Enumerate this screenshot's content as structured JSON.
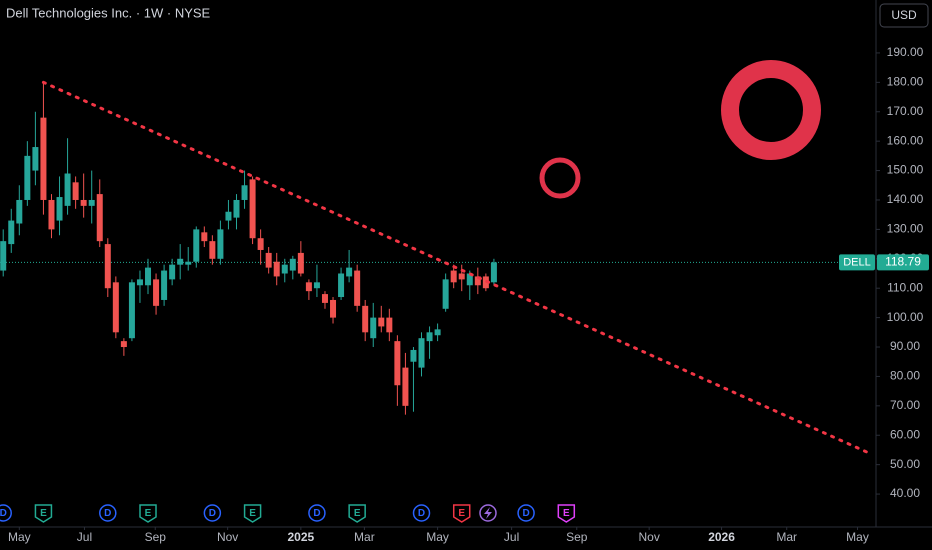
{
  "chart_data": {
    "type": "candlestick",
    "title": "Dell Technologies Inc. · 1W · NYSE",
    "currency": "USD",
    "up_color": "#26a69a",
    "down_color": "#f05350",
    "x": [
      -2,
      -1,
      0,
      1,
      2,
      3,
      4,
      5,
      6,
      7,
      8,
      9,
      10,
      11,
      12,
      13,
      14,
      15,
      16,
      17,
      18,
      19,
      20,
      21,
      22,
      23,
      24,
      25,
      26,
      27,
      28,
      29,
      30,
      31,
      32,
      33,
      34,
      35,
      36,
      37,
      38,
      39,
      40,
      41,
      42,
      43,
      44,
      45,
      46,
      47,
      48,
      49,
      50,
      51,
      52,
      53,
      54,
      55,
      56,
      57,
      58,
      59
    ],
    "open": [
      116,
      125,
      132,
      140,
      150,
      168,
      140,
      133,
      138,
      146,
      140,
      138,
      142,
      125,
      112,
      92,
      93,
      111,
      111,
      113,
      106,
      113,
      118,
      118,
      119,
      129,
      126,
      120,
      133,
      134,
      140,
      147,
      127,
      122,
      119,
      115,
      116,
      122,
      112,
      110,
      108,
      106,
      107,
      114,
      116,
      104,
      93,
      100,
      100,
      92,
      83,
      85,
      83,
      92,
      94,
      103,
      116,
      115,
      111,
      114,
      114,
      112
    ],
    "high": [
      130,
      137,
      145,
      160,
      170,
      180,
      142,
      148,
      161,
      148,
      149,
      150,
      147,
      127,
      114,
      93,
      113,
      116,
      120,
      115,
      118,
      120,
      125,
      124,
      131,
      131,
      128,
      133,
      140,
      142,
      150,
      148,
      130,
      124,
      122,
      120,
      121,
      126,
      113,
      118,
      109,
      107,
      117,
      123,
      118,
      106,
      105,
      104,
      103,
      94,
      88,
      90,
      95,
      97,
      98,
      115,
      118,
      118,
      116,
      117,
      115,
      120
    ],
    "low": [
      114,
      122,
      128,
      138,
      145,
      135,
      127,
      128,
      135,
      137,
      134,
      132,
      124,
      107,
      93,
      87,
      92,
      105,
      108,
      101,
      104,
      111,
      113,
      116,
      117,
      124,
      118,
      118,
      130,
      130,
      137,
      125,
      118,
      115,
      111,
      112,
      113,
      114,
      106,
      107,
      103,
      98,
      106,
      112,
      102,
      92,
      90,
      95,
      92,
      70,
      67,
      68,
      80,
      86,
      92,
      102,
      110,
      109,
      106,
      108,
      109,
      111
    ],
    "close": [
      126,
      133,
      140,
      155,
      158,
      140,
      130,
      141,
      149,
      140,
      138,
      140,
      126,
      110,
      95,
      90,
      112,
      113,
      117,
      104,
      116,
      118,
      120,
      119,
      130,
      126,
      120,
      130,
      136,
      140,
      145,
      127,
      123,
      117,
      114,
      118,
      120,
      115,
      109,
      112,
      105,
      100,
      115,
      117,
      104,
      95,
      100,
      97,
      95,
      77,
      70,
      89,
      93,
      95,
      96,
      113,
      112,
      113,
      115,
      111,
      110,
      118.79
    ],
    "xlim": [
      -2.4,
      106.5
    ],
    "xticks": [
      {
        "value": 0,
        "label": "May"
      },
      {
        "value": 8.1,
        "label": "Jul"
      },
      {
        "value": 16.9,
        "label": "Sep"
      },
      {
        "value": 25.9,
        "label": "Nov"
      },
      {
        "value": 35.0,
        "label": "2025"
      },
      {
        "value": 42.9,
        "label": "Mar"
      },
      {
        "value": 52.0,
        "label": "May"
      },
      {
        "value": 61.2,
        "label": "Jul"
      },
      {
        "value": 69.3,
        "label": "Sep"
      },
      {
        "value": 78.3,
        "label": "Nov"
      },
      {
        "value": 87.3,
        "label": "2026"
      },
      {
        "value": 95.4,
        "label": "Mar"
      },
      {
        "value": 104.2,
        "label": "May"
      }
    ],
    "ylim": [
      28.8,
      208
    ],
    "yticks": [
      {
        "value": 40,
        "label": "40.00"
      },
      {
        "value": 50,
        "label": "50.00"
      },
      {
        "value": 60,
        "label": "60.00"
      },
      {
        "value": 70,
        "label": "70.00"
      },
      {
        "value": 80,
        "label": "80.00"
      },
      {
        "value": 90,
        "label": "90.00"
      },
      {
        "value": 100,
        "label": "100.00"
      },
      {
        "value": 110,
        "label": "110.00"
      },
      {
        "value": 120,
        "label": "120.00"
      },
      {
        "value": 130,
        "label": "130.00"
      },
      {
        "value": 140,
        "label": "140.00"
      },
      {
        "value": 150,
        "label": "150.00"
      },
      {
        "value": 160,
        "label": "160.00"
      },
      {
        "value": 170,
        "label": "170.00"
      },
      {
        "value": 180,
        "label": "180.00"
      },
      {
        "value": 190,
        "label": "190.00"
      }
    ],
    "last_price": {
      "label": "DELL",
      "value": 118.79,
      "color": "#22ab94"
    },
    "trendline": {
      "x": [
        3,
        106
      ],
      "y": [
        180,
        53.5
      ],
      "color": "#f23645"
    },
    "events": [
      {
        "label": "D",
        "x": -2,
        "color": "#2962ff"
      },
      {
        "label": "E",
        "x": 3,
        "color": "#22ab94"
      },
      {
        "label": "D",
        "x": 11,
        "color": "#2962ff"
      },
      {
        "label": "E",
        "x": 16,
        "color": "#22ab94"
      },
      {
        "label": "D",
        "x": 24,
        "color": "#2962ff"
      },
      {
        "label": "E",
        "x": 29,
        "color": "#22ab94"
      },
      {
        "label": "D",
        "x": 37,
        "color": "#2962ff"
      },
      {
        "label": "E",
        "x": 42,
        "color": "#22ab94"
      },
      {
        "label": "D",
        "x": 50,
        "color": "#2962ff"
      },
      {
        "label": "E",
        "x": 55,
        "color": "#f23645"
      },
      {
        "label": "D",
        "x": 63,
        "color": "#2962ff"
      },
      {
        "label": "E",
        "x": 68,
        "color": "#e040fb"
      }
    ]
  }
}
